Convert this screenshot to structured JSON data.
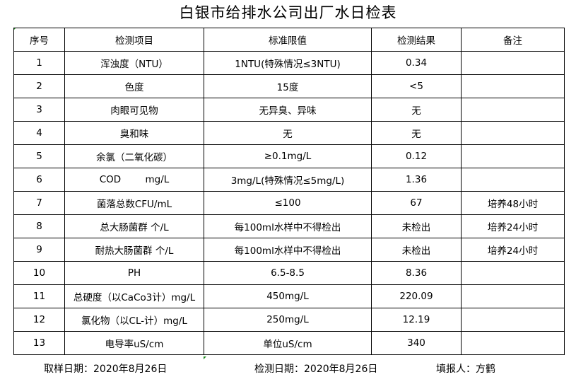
{
  "title": "白银市给排水公司出厂水日检表",
  "headers": [
    "序号",
    "检测项目",
    "标准限值",
    "检测结果",
    "备注"
  ],
  "rows": [
    [
      "1",
      "浑浊度（NTU）",
      "1NTU(特殊情况≤3NTU)",
      "0.34",
      ""
    ],
    [
      "2",
      "色度",
      "15度",
      "<5",
      ""
    ],
    [
      "3",
      "肉眼可见物",
      "无异臭、异味",
      "无",
      ""
    ],
    [
      "4",
      "臭和味",
      "无",
      "无",
      ""
    ],
    [
      "5",
      "余氯（二氧化碳）",
      "≥0.1mg/L",
      "0.12",
      ""
    ],
    [
      "6",
      "COD        mg/L",
      "3mg/L(特殊情况≤5mg/L)",
      "1.36",
      ""
    ],
    [
      "7",
      "菌落总数CFU/mL",
      "≤100",
      "67",
      "培养48小时"
    ],
    [
      "8",
      "总大肠菌群 个/L",
      "每100ml水样中不得检出",
      "未检出",
      "培养24小时"
    ],
    [
      "9",
      "耐热大肠菌群 个/L",
      "每100ml水样中不得检出",
      "未检出",
      "培养24小时"
    ],
    [
      "10",
      "PH",
      "6.5-8.5",
      "8.36",
      ""
    ],
    [
      "11",
      "总硬度（以CaCo3计）mg/L",
      "450mg/L",
      "220.09",
      ""
    ],
    [
      "12",
      "氯化物（以CL-计）mg/L",
      "250mg/L",
      "12.19",
      ""
    ],
    [
      "13",
      "电导率uS/cm",
      "单位uS/cm",
      "340",
      ""
    ]
  ],
  "footer": {
    "sampling_date": "取样日期：2020年8月26日",
    "test_date": "检测日期：2020年8月26日",
    "reporter": "填报人：方鹤"
  }
}
